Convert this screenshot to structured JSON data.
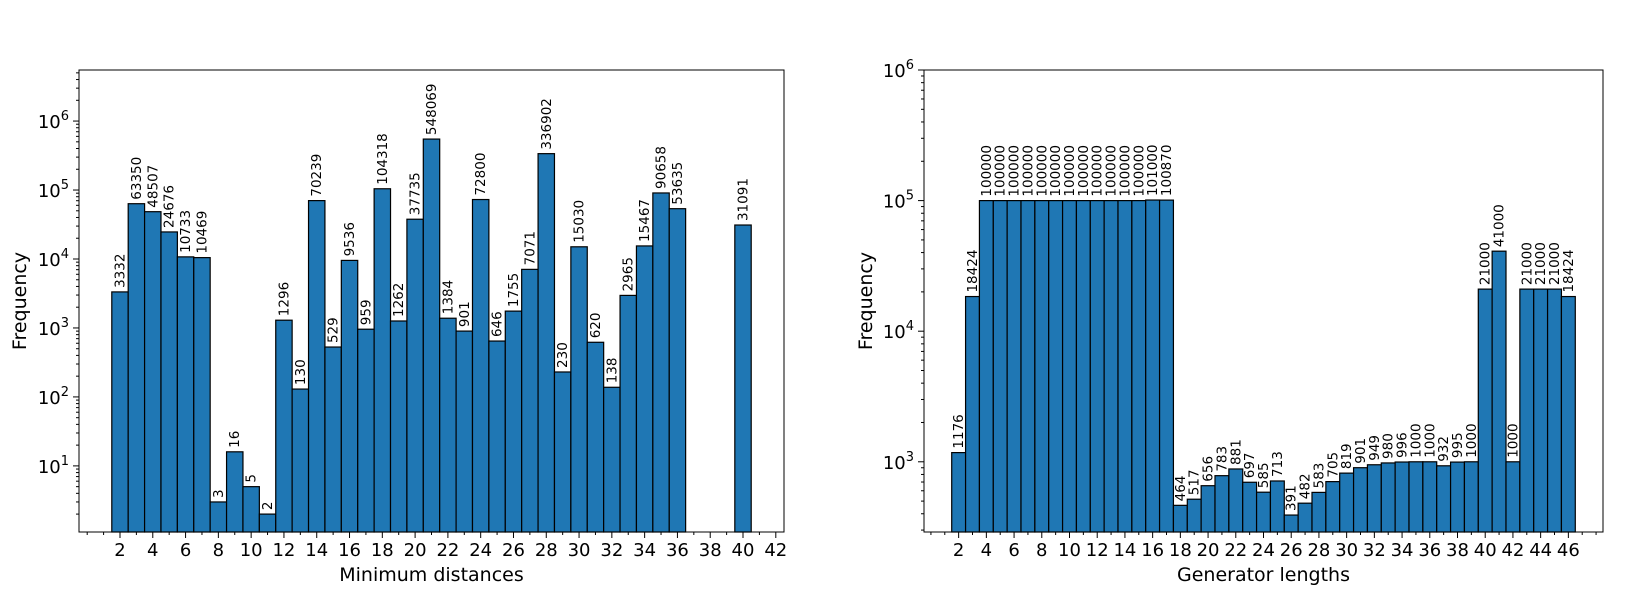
{
  "chart_data": [
    {
      "type": "bar",
      "title": "",
      "xlabel": "Minimum distances",
      "ylabel": "Frequency",
      "yscale": "log",
      "ylim": [
        1.1,
        5500000
      ],
      "xlim": [
        -0.5,
        42.5
      ],
      "x_ticks": [
        2,
        4,
        6,
        8,
        10,
        12,
        14,
        16,
        18,
        20,
        22,
        24,
        26,
        28,
        30,
        32,
        34,
        36,
        38,
        40,
        42
      ],
      "y_ticks": [
        {
          "value": 10,
          "base": "10",
          "exp": "1"
        },
        {
          "value": 100,
          "base": "10",
          "exp": "2"
        },
        {
          "value": 1000,
          "base": "10",
          "exp": "3"
        },
        {
          "value": 10000,
          "base": "10",
          "exp": "4"
        },
        {
          "value": 100000,
          "base": "10",
          "exp": "5"
        },
        {
          "value": 1000000,
          "base": "10",
          "exp": "6"
        }
      ],
      "x": [
        2,
        3,
        4,
        5,
        6,
        7,
        8,
        9,
        10,
        11,
        12,
        13,
        14,
        15,
        16,
        17,
        18,
        19,
        20,
        21,
        22,
        23,
        24,
        25,
        26,
        27,
        28,
        29,
        30,
        31,
        32,
        33,
        34,
        35,
        36,
        40
      ],
      "values": [
        3332,
        63350,
        48507,
        24676,
        10733,
        10469,
        3,
        16,
        5,
        2,
        1296,
        130,
        70239,
        529,
        9536,
        959,
        104318,
        1262,
        37735,
        548069,
        1384,
        901,
        72800,
        646,
        1755,
        7071,
        336902,
        230,
        15030,
        620,
        138,
        2965,
        15467,
        90658,
        53635,
        31091
      ],
      "labels": [
        "3332",
        "63350",
        "48507",
        "24676",
        "10733",
        "10469",
        "3",
        "16",
        "5",
        "2",
        "1296",
        "130",
        "70239",
        "529",
        "9536",
        "959",
        "104318",
        "1262",
        "37735",
        "548069",
        "1384",
        "901",
        "72800",
        "646",
        "1755",
        "7071",
        "336902",
        "230",
        "15030",
        "620",
        "138",
        "2965",
        "15467",
        "90658",
        "53635",
        "31091"
      ]
    },
    {
      "type": "bar",
      "title": "",
      "xlabel": "Generator lengths",
      "ylabel": "Frequency",
      "yscale": "log",
      "ylim": [
        290,
        1000000
      ],
      "xlim": [
        -0.5,
        48.5
      ],
      "x_ticks": [
        2,
        4,
        6,
        8,
        10,
        12,
        14,
        16,
        18,
        20,
        22,
        24,
        26,
        28,
        30,
        32,
        34,
        36,
        38,
        40,
        42,
        44,
        46
      ],
      "y_ticks": [
        {
          "value": 1000,
          "base": "10",
          "exp": "3"
        },
        {
          "value": 10000,
          "base": "10",
          "exp": "4"
        },
        {
          "value": 100000,
          "base": "10",
          "exp": "5"
        },
        {
          "value": 1000000,
          "base": "10",
          "exp": "6"
        }
      ],
      "x": [
        2,
        3,
        4,
        5,
        6,
        7,
        8,
        9,
        10,
        11,
        12,
        13,
        14,
        15,
        16,
        17,
        18,
        19,
        20,
        21,
        22,
        23,
        24,
        25,
        26,
        27,
        28,
        29,
        30,
        31,
        32,
        33,
        34,
        35,
        36,
        37,
        38,
        39,
        40,
        41,
        42,
        43,
        44,
        45,
        46
      ],
      "values": [
        1176,
        18424,
        100000,
        100000,
        100000,
        100000,
        100000,
        100000,
        100000,
        100000,
        100000,
        100000,
        100000,
        100000,
        101000,
        100870,
        464,
        517,
        656,
        783,
        881,
        697,
        585,
        713,
        391,
        482,
        583,
        705,
        819,
        901,
        949,
        980,
        996,
        1000,
        1000,
        932,
        995,
        1000,
        21000,
        41000,
        1000,
        21000,
        21000,
        21000,
        18424
      ],
      "labels": [
        "1176",
        "18424",
        "100000",
        "100000",
        "100000",
        "100000",
        "100000",
        "100000",
        "100000",
        "100000",
        "100000",
        "100000",
        "100000",
        "100000",
        "101000",
        "100870",
        "464",
        "517",
        "656",
        "783",
        "881",
        "697",
        "585",
        "713",
        "391",
        "482",
        "583",
        "705",
        "819",
        "901",
        "949",
        "980",
        "996",
        "1000",
        "1000",
        "932",
        "995",
        "1000",
        "21000",
        "41000",
        "1000",
        "21000",
        "21000",
        "21000",
        "18424"
      ]
    }
  ]
}
